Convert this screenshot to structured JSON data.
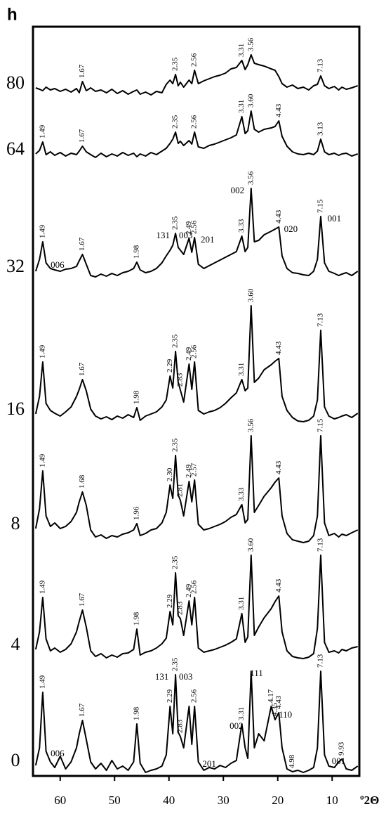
{
  "chart_data": {
    "type": "line",
    "panel_label": "h",
    "x_label": "º2Θ",
    "xlim": [
      65,
      5
    ],
    "xticks": [
      60,
      50,
      40,
      30,
      20,
      10
    ],
    "ylim": [
      0,
      1066
    ],
    "x": [
      64.5,
      63.8,
      63.2,
      62.6,
      61.8,
      61,
      60,
      59,
      58,
      57,
      56.5,
      55.9,
      55.2,
      54.4,
      53.5,
      52.5,
      51.5,
      50.5,
      49.5,
      48.5,
      47.5,
      46.5,
      45.9,
      45.3,
      44.3,
      43.3,
      42.3,
      41.3,
      40.5,
      39.8,
      39.3,
      38.8,
      38.3,
      37.9,
      37.3,
      36.3,
      35.8,
      35.3,
      34.6,
      33.6,
      32.6,
      31.6,
      30.6,
      29.6,
      28.6,
      27.6,
      26.6,
      26,
      25.5,
      24.9,
      24.3,
      23.5,
      22.5,
      21.2,
      20.5,
      19.8,
      19.2,
      18.3,
      17.3,
      16.3,
      15.3,
      14.3,
      13.4,
      12.7,
      12.1,
      11.4,
      10.6,
      9.6,
      8.8,
      8.2,
      7.4,
      6.4,
      5.3
    ],
    "series": [
      {
        "name": "80",
        "color": "#000000",
        "values": [
          979,
          977,
          975,
          980,
          976,
          978,
          974,
          977,
          973,
          978,
          972,
          988,
          975,
          979,
          974,
          976,
          972,
          977,
          971,
          975,
          970,
          974,
          976,
          970,
          973,
          969,
          974,
          972,
          984,
          990,
          985,
          998,
          982,
          987,
          980,
          990,
          985,
          1004,
          985,
          989,
          992,
          995,
          997,
          1000,
          1006,
          1008,
          1018,
          1005,
          1012,
          1026,
          1014,
          1012,
          1010,
          1006,
          1004,
          995,
          985,
          980,
          983,
          978,
          980,
          976,
          982,
          984,
          996,
          982,
          978,
          981,
          976,
          980,
          977,
          979,
          982
        ],
        "peak_labels": [
          {
            "text": "1.67",
            "x": 55.9
          },
          {
            "text": "2.35",
            "x": 38.8
          },
          {
            "text": "2.56",
            "x": 35.3
          },
          {
            "text": "3.31",
            "x": 26.6
          },
          {
            "text": "3.56",
            "x": 24.9
          },
          {
            "text": "7.13",
            "x": 12.1
          }
        ]
      },
      {
        "name": "64",
        "color": "#000000",
        "values": [
          885,
          890,
          902,
          884,
          888,
          883,
          887,
          882,
          886,
          884,
          889,
          896,
          888,
          884,
          880,
          886,
          881,
          885,
          882,
          887,
          883,
          886,
          881,
          885,
          882,
          887,
          884,
          889,
          893,
          900,
          906,
          916,
          900,
          903,
          897,
          904,
          899,
          916,
          895,
          893,
          897,
          899,
          902,
          905,
          908,
          912,
          938,
          914,
          918,
          946,
          920,
          916,
          920,
          922,
          924,
          932,
          910,
          896,
          888,
          885,
          884,
          886,
          884,
          889,
          906,
          888,
          884,
          886,
          883,
          885,
          886,
          882,
          885
        ],
        "peak_labels": [
          {
            "text": "1.49",
            "x": 63.2
          },
          {
            "text": "1.67",
            "x": 55.9
          },
          {
            "text": "2.35",
            "x": 38.8
          },
          {
            "text": "2.56",
            "x": 35.3
          },
          {
            "text": "3.31",
            "x": 26.6
          },
          {
            "text": "3.60",
            "x": 24.9
          },
          {
            "text": "4.43",
            "x": 19.8
          },
          {
            "text": "3.13",
            "x": 12.1
          }
        ]
      },
      {
        "name": "32",
        "color": "#000000",
        "values": [
          718,
          735,
          760,
          730,
          722,
          720,
          718,
          721,
          722,
          725,
          733,
          742,
          728,
          712,
          710,
          714,
          711,
          715,
          712,
          716,
          718,
          722,
          731,
          720,
          716,
          718,
          722,
          730,
          740,
          748,
          755,
          772,
          752,
          748,
          742,
          765,
          745,
          766,
          728,
          722,
          726,
          730,
          734,
          738,
          742,
          746,
          768,
          746,
          752,
          836,
          760,
          762,
          770,
          775,
          778,
          781,
          740,
          722,
          716,
          715,
          713,
          712,
          718,
          735,
          796,
          730,
          718,
          715,
          712,
          714,
          716,
          712,
          718
        ],
        "peak_labels": [
          {
            "text": "1.49",
            "x": 63.2
          },
          {
            "text": "1.67",
            "x": 55.9
          },
          {
            "text": "1.98",
            "x": 45.9
          },
          {
            "text": "2.35",
            "x": 38.8
          },
          {
            "text": "2.49",
            "x": 36.3
          },
          {
            "text": "2.56",
            "x": 35.3
          },
          {
            "text": "3.33",
            "x": 26.6
          },
          {
            "text": "3.56",
            "x": 24.9
          },
          {
            "text": "4.43",
            "x": 19.8
          },
          {
            "text": "7.15",
            "x": 12.1
          }
        ],
        "hkl_labels": [
          {
            "text": "006",
            "x": 60.5
          },
          {
            "text": "131",
            "x": 41.1
          },
          {
            "text": "003",
            "x": 36.9
          },
          {
            "text": "201",
            "x": 32.9
          },
          {
            "text": "002",
            "x": 27.4
          },
          {
            "text": "020",
            "x": 17.6
          },
          {
            "text": "001",
            "x": 9.6
          }
        ]
      },
      {
        "name": "16",
        "color": "#000000",
        "values": [
          515,
          540,
          589,
          530,
          520,
          516,
          512,
          518,
          525,
          540,
          550,
          564,
          548,
          522,
          512,
          508,
          511,
          507,
          512,
          509,
          514,
          510,
          524,
          506,
          512,
          515,
          518,
          525,
          535,
          569,
          552,
          604,
          560,
          549,
          532,
          586,
          550,
          589,
          520,
          515,
          518,
          520,
          524,
          530,
          538,
          545,
          564,
          548,
          552,
          669,
          560,
          566,
          578,
          585,
          590,
          594,
          540,
          520,
          510,
          505,
          504,
          506,
          512,
          535,
          634,
          525,
          512,
          508,
          510,
          512,
          514,
          510,
          516
        ],
        "peak_labels": [
          {
            "text": "1.49",
            "x": 63.2
          },
          {
            "text": "1.67",
            "x": 55.9
          },
          {
            "text": "1.98",
            "x": 45.9
          },
          {
            "text": "2.29",
            "x": 39.8
          },
          {
            "text": "2.35",
            "x": 38.8
          },
          {
            "text": "2.83",
            "x": 37.9
          },
          {
            "text": "2.49",
            "x": 36.3
          },
          {
            "text": "2.56",
            "x": 35.3
          },
          {
            "text": "3.31",
            "x": 26.6
          },
          {
            "text": "3.60",
            "x": 24.9
          },
          {
            "text": "4.43",
            "x": 19.8
          },
          {
            "text": "7.13",
            "x": 12.1
          }
        ]
      },
      {
        "name": "8",
        "color": "#000000",
        "values": [
          352,
          380,
          434,
          370,
          355,
          360,
          352,
          355,
          362,
          375,
          390,
          404,
          385,
          350,
          340,
          343,
          338,
          342,
          340,
          344,
          346,
          350,
          359,
          342,
          345,
          350,
          352,
          360,
          375,
          414,
          395,
          456,
          400,
          392,
          370,
          419,
          390,
          421,
          358,
          350,
          352,
          355,
          358,
          362,
          368,
          372,
          386,
          360,
          365,
          484,
          375,
          385,
          398,
          410,
          418,
          424,
          370,
          345,
          336,
          334,
          332,
          334,
          342,
          370,
          484,
          360,
          342,
          345,
          340,
          344,
          342,
          346,
          350
        ],
        "peak_labels": [
          {
            "text": "1.49",
            "x": 63.2
          },
          {
            "text": "1.68",
            "x": 55.9
          },
          {
            "text": "1.96",
            "x": 45.9
          },
          {
            "text": "2.30",
            "x": 39.8
          },
          {
            "text": "2.35",
            "x": 38.8
          },
          {
            "text": "2.81",
            "x": 37.9
          },
          {
            "text": "2.49",
            "x": 36.3
          },
          {
            "text": "2.57",
            "x": 35.3
          },
          {
            "text": "3.33",
            "x": 26.6
          },
          {
            "text": "3.56",
            "x": 24.9
          },
          {
            "text": "4.43",
            "x": 19.8
          },
          {
            "text": "7.15",
            "x": 12.1
          }
        ]
      },
      {
        "name": "4",
        "color": "#000000",
        "values": [
          180,
          205,
          254,
          195,
          178,
          182,
          176,
          180,
          188,
          205,
          220,
          236,
          212,
          178,
          170,
          174,
          168,
          172,
          169,
          174,
          175,
          180,
          209,
          172,
          176,
          178,
          182,
          188,
          196,
          234,
          215,
          289,
          228,
          224,
          200,
          249,
          215,
          254,
          182,
          176,
          178,
          180,
          183,
          186,
          190,
          195,
          231,
          190,
          198,
          314,
          200,
          212,
          225,
          238,
          248,
          256,
          205,
          178,
          170,
          168,
          167,
          169,
          174,
          210,
          314,
          190,
          176,
          178,
          175,
          180,
          178,
          182,
          184
        ],
        "peak_labels": [
          {
            "text": "1.49",
            "x": 63.2
          },
          {
            "text": "1.67",
            "x": 55.9
          },
          {
            "text": "1.98",
            "x": 45.9
          },
          {
            "text": "2.29",
            "x": 39.8
          },
          {
            "text": "2.35",
            "x": 38.8
          },
          {
            "text": "2.83",
            "x": 37.9
          },
          {
            "text": "2.49",
            "x": 36.3
          },
          {
            "text": "2.56",
            "x": 35.3
          },
          {
            "text": "3.31",
            "x": 26.6
          },
          {
            "text": "3.60",
            "x": 24.9
          },
          {
            "text": "4.43",
            "x": 19.8
          },
          {
            "text": "7.13",
            "x": 12.1
          }
        ]
      },
      {
        "name": "0",
        "color": "#000000",
        "values": [
          15,
          40,
          119,
          35,
          20,
          12,
          28,
          10,
          20,
          40,
          60,
          79,
          52,
          20,
          10,
          18,
          8,
          22,
          10,
          14,
          8,
          20,
          74,
          18,
          5,
          8,
          10,
          14,
          30,
          99,
          60,
          144,
          62,
          56,
          40,
          99,
          45,
          99,
          20,
          8,
          12,
          10,
          15,
          12,
          18,
          22,
          74,
          40,
          25,
          149,
          40,
          60,
          50,
          99,
          80,
          90,
          40,
          10,
          6,
          8,
          5,
          8,
          12,
          40,
          149,
          30,
          14,
          12,
          20,
          24,
          10,
          8,
          14
        ],
        "peak_labels": [
          {
            "text": "1.49",
            "x": 63.2
          },
          {
            "text": "1.67",
            "x": 55.9
          },
          {
            "text": "1.98",
            "x": 45.9
          },
          {
            "text": "2.29",
            "x": 39.8
          },
          {
            "text": "2.35",
            "x": 38.8
          },
          {
            "text": "2.83",
            "x": 37.9
          },
          {
            "text": "2.56",
            "x": 35.3
          },
          {
            "text": "3.31",
            "x": 26.6
          },
          {
            "text": "4.17",
            "x": 21.2
          },
          {
            "text": "4.35",
            "x": 20.5
          },
          {
            "text": "4.43",
            "x": 19.8
          },
          {
            "text": "4.98",
            "x": 17.3
          },
          {
            "text": "7.13",
            "x": 12.1
          },
          {
            "text": "9.93",
            "x": 8.2
          }
        ],
        "hkl_labels": [
          {
            "text": "006",
            "x": 60.5
          },
          {
            "text": "131",
            "x": 41.3
          },
          {
            "text": "003",
            "x": 36.9
          },
          {
            "text": "201",
            "x": 32.6
          },
          {
            "text": "002",
            "x": 27.6
          },
          {
            "text": "111",
            "x": 23.9
          },
          {
            "text": "110",
            "x": 18.6
          },
          {
            "text": "001",
            "x": 8.8
          }
        ]
      }
    ]
  }
}
